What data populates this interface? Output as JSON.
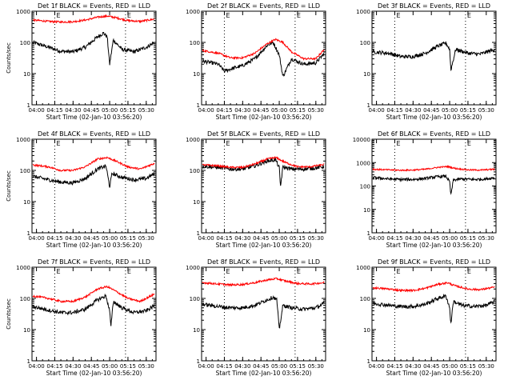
{
  "colors": {
    "events": "#000000",
    "lld": "#ff0000",
    "axis": "#000000",
    "background": "#ffffff",
    "marker_lines": "#000000"
  },
  "chart_data": [
    {
      "type": "line",
      "detector": "1f",
      "title": "Det 1f BLACK = Events, RED = LLD",
      "ylabel": "Counts/sec",
      "xlabel": "Start Time (02-Jan-10 03:56:20)",
      "x_ticks": [
        "04:00",
        "04:15",
        "04:30",
        "04:45",
        "05:00",
        "05:15",
        "05:30"
      ],
      "y_scale": "log",
      "ylim": [
        1,
        1000
      ],
      "y_ticks": [
        "1",
        "10",
        "100",
        "1000"
      ],
      "marker_times": [
        "04:15",
        "05:13"
      ],
      "marker_labels": [
        "E",
        "E"
      ],
      "series": [
        {
          "name": "Events",
          "color": "#000000",
          "x": [
            "03:57",
            "04:10",
            "04:20",
            "04:30",
            "04:40",
            "04:50",
            "04:55",
            "04:58",
            "05:00",
            "05:03",
            "05:10",
            "05:20",
            "05:30",
            "05:37"
          ],
          "y": [
            100,
            70,
            52,
            50,
            70,
            150,
            200,
            150,
            20,
            120,
            60,
            50,
            70,
            100
          ]
        },
        {
          "name": "LLD",
          "color": "#ff0000",
          "x": [
            "03:57",
            "04:10",
            "04:20",
            "04:30",
            "04:40",
            "04:50",
            "04:58",
            "05:05",
            "05:15",
            "05:25",
            "05:37"
          ],
          "y": [
            520,
            470,
            450,
            460,
            520,
            640,
            700,
            620,
            500,
            470,
            560
          ]
        }
      ]
    },
    {
      "type": "line",
      "detector": "2f",
      "title": "Det 2f BLACK = Events, RED = LLD",
      "ylabel": "",
      "xlabel": "Start Time (02-Jan-10 03:56:20)",
      "x_ticks": [
        "04:00",
        "04:15",
        "04:30",
        "04:45",
        "05:00",
        "05:15",
        "05:30"
      ],
      "y_scale": "log",
      "ylim": [
        1,
        1000
      ],
      "y_ticks": [
        "1",
        "10",
        "100",
        "1000"
      ],
      "marker_times": [
        "04:15",
        "05:13"
      ],
      "marker_labels": [
        "E",
        "E"
      ],
      "series": [
        {
          "name": "Events",
          "color": "#000000",
          "x": [
            "03:57",
            "04:05",
            "04:10",
            "04:15",
            "04:20",
            "04:30",
            "04:40",
            "04:50",
            "04:55",
            "05:00",
            "05:03",
            "05:10",
            "05:20",
            "05:30",
            "05:37"
          ],
          "y": [
            25,
            22,
            20,
            12,
            14,
            18,
            30,
            80,
            100,
            40,
            8,
            30,
            20,
            22,
            45
          ]
        },
        {
          "name": "LLD",
          "color": "#ff0000",
          "x": [
            "03:57",
            "04:10",
            "04:20",
            "04:30",
            "04:40",
            "04:50",
            "04:57",
            "05:03",
            "05:10",
            "05:20",
            "05:30",
            "05:37"
          ],
          "y": [
            55,
            45,
            32,
            32,
            45,
            90,
            125,
            100,
            50,
            30,
            30,
            60
          ]
        }
      ]
    },
    {
      "type": "line",
      "detector": "3f",
      "title": "Det 3f BLACK = Events, RED = LLD",
      "ylabel": "",
      "xlabel": "Start Time (02-Jan-10 03:56:20)",
      "x_ticks": [
        "04:00",
        "04:15",
        "04:30",
        "04:45",
        "05:00",
        "05:15",
        "05:30"
      ],
      "y_scale": "log",
      "ylim": [
        1,
        1000
      ],
      "y_ticks": [
        "1",
        "10",
        "100",
        "1000"
      ],
      "marker_times": [
        "04:15",
        "05:13"
      ],
      "marker_labels": [
        "E",
        "E"
      ],
      "series": [
        {
          "name": "Events",
          "color": "#000000",
          "x": [
            "03:57",
            "04:10",
            "04:20",
            "04:30",
            "04:40",
            "04:50",
            "04:57",
            "05:00",
            "05:01",
            "05:05",
            "05:15",
            "05:25",
            "05:37"
          ],
          "y": [
            50,
            45,
            35,
            35,
            45,
            75,
            95,
            60,
            13,
            60,
            45,
            42,
            60
          ]
        }
      ]
    },
    {
      "type": "line",
      "detector": "4f",
      "title": "Det 4f BLACK = Events, RED = LLD",
      "ylabel": "Counts/sec",
      "xlabel": "Start Time (02-Jan-10 03:56:20)",
      "x_ticks": [
        "04:00",
        "04:15",
        "04:30",
        "04:45",
        "05:00",
        "05:15",
        "05:30"
      ],
      "y_scale": "log",
      "ylim": [
        1,
        1000
      ],
      "y_ticks": [
        "1",
        "10",
        "100",
        "1000"
      ],
      "marker_times": [
        "04:15",
        "05:13"
      ],
      "marker_labels": [
        "E",
        "E"
      ],
      "series": [
        {
          "name": "Events",
          "color": "#000000",
          "x": [
            "03:57",
            "04:10",
            "04:20",
            "04:30",
            "04:40",
            "04:50",
            "04:57",
            "05:00",
            "05:02",
            "05:10",
            "05:20",
            "05:30",
            "05:37"
          ],
          "y": [
            65,
            50,
            42,
            40,
            55,
            110,
            140,
            30,
            80,
            60,
            50,
            55,
            80
          ]
        },
        {
          "name": "LLD",
          "color": "#ff0000",
          "x": [
            "03:57",
            "04:10",
            "04:20",
            "04:30",
            "04:40",
            "04:50",
            "04:58",
            "05:05",
            "05:15",
            "05:25",
            "05:37"
          ],
          "y": [
            150,
            130,
            100,
            100,
            130,
            230,
            260,
            200,
            130,
            110,
            170
          ]
        }
      ]
    },
    {
      "type": "line",
      "detector": "5f",
      "title": "Det 5f BLACK = Events, RED = LLD",
      "ylabel": "",
      "xlabel": "Start Time (02-Jan-10 03:56:20)",
      "x_ticks": [
        "04:00",
        "04:15",
        "04:30",
        "04:45",
        "05:00",
        "05:15",
        "05:30"
      ],
      "y_scale": "log",
      "ylim": [
        1,
        1000
      ],
      "y_ticks": [
        "1",
        "10",
        "100",
        "1000"
      ],
      "marker_times": [
        "04:15",
        "05:13"
      ],
      "marker_labels": [
        "E",
        "E"
      ],
      "series": [
        {
          "name": "Events",
          "color": "#000000",
          "x": [
            "03:57",
            "04:10",
            "04:20",
            "04:30",
            "04:40",
            "04:50",
            "04:57",
            "05:00",
            "05:01",
            "05:03",
            "05:10",
            "05:20",
            "05:30",
            "05:37"
          ],
          "y": [
            135,
            125,
            110,
            110,
            140,
            200,
            220,
            120,
            30,
            130,
            110,
            110,
            120,
            135
          ]
        },
        {
          "name": "LLD",
          "color": "#ff0000",
          "x": [
            "03:57",
            "04:10",
            "04:20",
            "04:30",
            "04:40",
            "04:50",
            "04:57",
            "05:05",
            "05:15",
            "05:25",
            "05:37"
          ],
          "y": [
            150,
            140,
            125,
            125,
            160,
            230,
            260,
            180,
            130,
            130,
            155
          ]
        }
      ]
    },
    {
      "type": "line",
      "detector": "6f",
      "title": "Det 6f BLACK = Events, RED = LLD",
      "ylabel": "",
      "xlabel": "Start Time (02-Jan-10 03:56:20)",
      "x_ticks": [
        "04:00",
        "04:15",
        "04:30",
        "04:45",
        "05:00",
        "05:15",
        "05:30"
      ],
      "y_scale": "log",
      "ylim": [
        1,
        10000
      ],
      "y_ticks": [
        "1",
        "10",
        "100",
        "1000",
        "10000"
      ],
      "marker_times": [
        "04:15",
        "05:13"
      ],
      "marker_labels": [
        "E",
        "E"
      ],
      "series": [
        {
          "name": "Events",
          "color": "#000000",
          "x": [
            "03:57",
            "04:10",
            "04:20",
            "04:30",
            "04:40",
            "04:50",
            "04:57",
            "05:00",
            "05:01",
            "05:03",
            "05:10",
            "05:20",
            "05:30",
            "05:37"
          ],
          "y": [
            230,
            200,
            190,
            190,
            210,
            250,
            260,
            150,
            40,
            180,
            200,
            190,
            200,
            230
          ]
        },
        {
          "name": "LLD",
          "color": "#ff0000",
          "x": [
            "03:57",
            "04:10",
            "04:20",
            "04:30",
            "04:40",
            "04:50",
            "04:58",
            "05:05",
            "05:15",
            "05:25",
            "05:37"
          ],
          "y": [
            520,
            490,
            470,
            480,
            520,
            620,
            680,
            560,
            490,
            480,
            520
          ]
        }
      ]
    },
    {
      "type": "line",
      "detector": "7f",
      "title": "Det 7f BLACK = Events, RED = LLD",
      "ylabel": "Counts/sec",
      "xlabel": "Start Time (02-Jan-10 03:56:20)",
      "x_ticks": [
        "04:00",
        "04:15",
        "04:30",
        "04:45",
        "05:00",
        "05:15",
        "05:30"
      ],
      "y_scale": "log",
      "ylim": [
        1,
        1000
      ],
      "y_ticks": [
        "1",
        "10",
        "100",
        "1000"
      ],
      "marker_times": [
        "04:15",
        "05:13"
      ],
      "marker_labels": [
        "E",
        "E"
      ],
      "series": [
        {
          "name": "Events",
          "color": "#000000",
          "x": [
            "03:57",
            "04:10",
            "04:20",
            "04:30",
            "04:40",
            "04:50",
            "04:57",
            "05:00",
            "05:01",
            "05:03",
            "05:10",
            "05:20",
            "05:30",
            "05:37"
          ],
          "y": [
            55,
            42,
            35,
            35,
            45,
            90,
            120,
            40,
            12,
            80,
            50,
            35,
            40,
            60
          ]
        },
        {
          "name": "LLD",
          "color": "#ff0000",
          "x": [
            "03:57",
            "04:10",
            "04:20",
            "04:30",
            "04:40",
            "04:50",
            "04:58",
            "05:05",
            "05:15",
            "05:25",
            "05:37"
          ],
          "y": [
            120,
            100,
            80,
            80,
            110,
            200,
            240,
            170,
            100,
            80,
            140
          ]
        }
      ]
    },
    {
      "type": "line",
      "detector": "8f",
      "title": "Det 8f BLACK = Events, RED = LLD",
      "ylabel": "",
      "xlabel": "Start Time (02-Jan-10 03:56:20)",
      "x_ticks": [
        "04:00",
        "04:15",
        "04:30",
        "04:45",
        "05:00",
        "05:15",
        "05:30"
      ],
      "y_scale": "log",
      "ylim": [
        1,
        1000
      ],
      "y_ticks": [
        "1",
        "10",
        "100",
        "1000"
      ],
      "marker_times": [
        "04:15",
        "05:13"
      ],
      "marker_labels": [
        "E",
        "E"
      ],
      "series": [
        {
          "name": "Events",
          "color": "#000000",
          "x": [
            "03:57",
            "04:10",
            "04:20",
            "04:30",
            "04:40",
            "04:50",
            "04:55",
            "04:58",
            "05:00",
            "05:03",
            "05:10",
            "05:20",
            "05:30",
            "05:37"
          ],
          "y": [
            65,
            55,
            50,
            50,
            60,
            90,
            110,
            90,
            10,
            60,
            50,
            45,
            50,
            70
          ]
        },
        {
          "name": "LLD",
          "color": "#ff0000",
          "x": [
            "03:57",
            "04:10",
            "04:20",
            "04:30",
            "04:40",
            "04:50",
            "04:58",
            "05:05",
            "05:15",
            "05:25",
            "05:37"
          ],
          "y": [
            320,
            290,
            270,
            280,
            320,
            390,
            430,
            360,
            300,
            290,
            320
          ]
        }
      ]
    },
    {
      "type": "line",
      "detector": "9f",
      "title": "Det 9f BLACK = Events, RED = LLD",
      "ylabel": "",
      "xlabel": "Start Time (02-Jan-10 03:56:20)",
      "x_ticks": [
        "04:00",
        "04:15",
        "04:30",
        "04:45",
        "05:00",
        "05:15",
        "05:30"
      ],
      "y_scale": "log",
      "ylim": [
        1,
        1000
      ],
      "y_ticks": [
        "1",
        "10",
        "100",
        "1000"
      ],
      "marker_times": [
        "04:15",
        "05:13"
      ],
      "marker_labels": [
        "E",
        "E"
      ],
      "series": [
        {
          "name": "Events",
          "color": "#000000",
          "x": [
            "03:57",
            "04:10",
            "04:20",
            "04:30",
            "04:40",
            "04:50",
            "04:57",
            "05:00",
            "05:01",
            "05:03",
            "05:10",
            "05:20",
            "05:30",
            "05:37"
          ],
          "y": [
            70,
            60,
            55,
            55,
            65,
            100,
            120,
            50,
            15,
            80,
            60,
            55,
            60,
            80
          ]
        },
        {
          "name": "LLD",
          "color": "#ff0000",
          "x": [
            "03:57",
            "04:10",
            "04:20",
            "04:30",
            "04:40",
            "04:50",
            "04:58",
            "05:05",
            "05:15",
            "05:25",
            "05:37"
          ],
          "y": [
            220,
            200,
            180,
            180,
            210,
            280,
            320,
            250,
            200,
            190,
            230
          ]
        }
      ]
    }
  ]
}
